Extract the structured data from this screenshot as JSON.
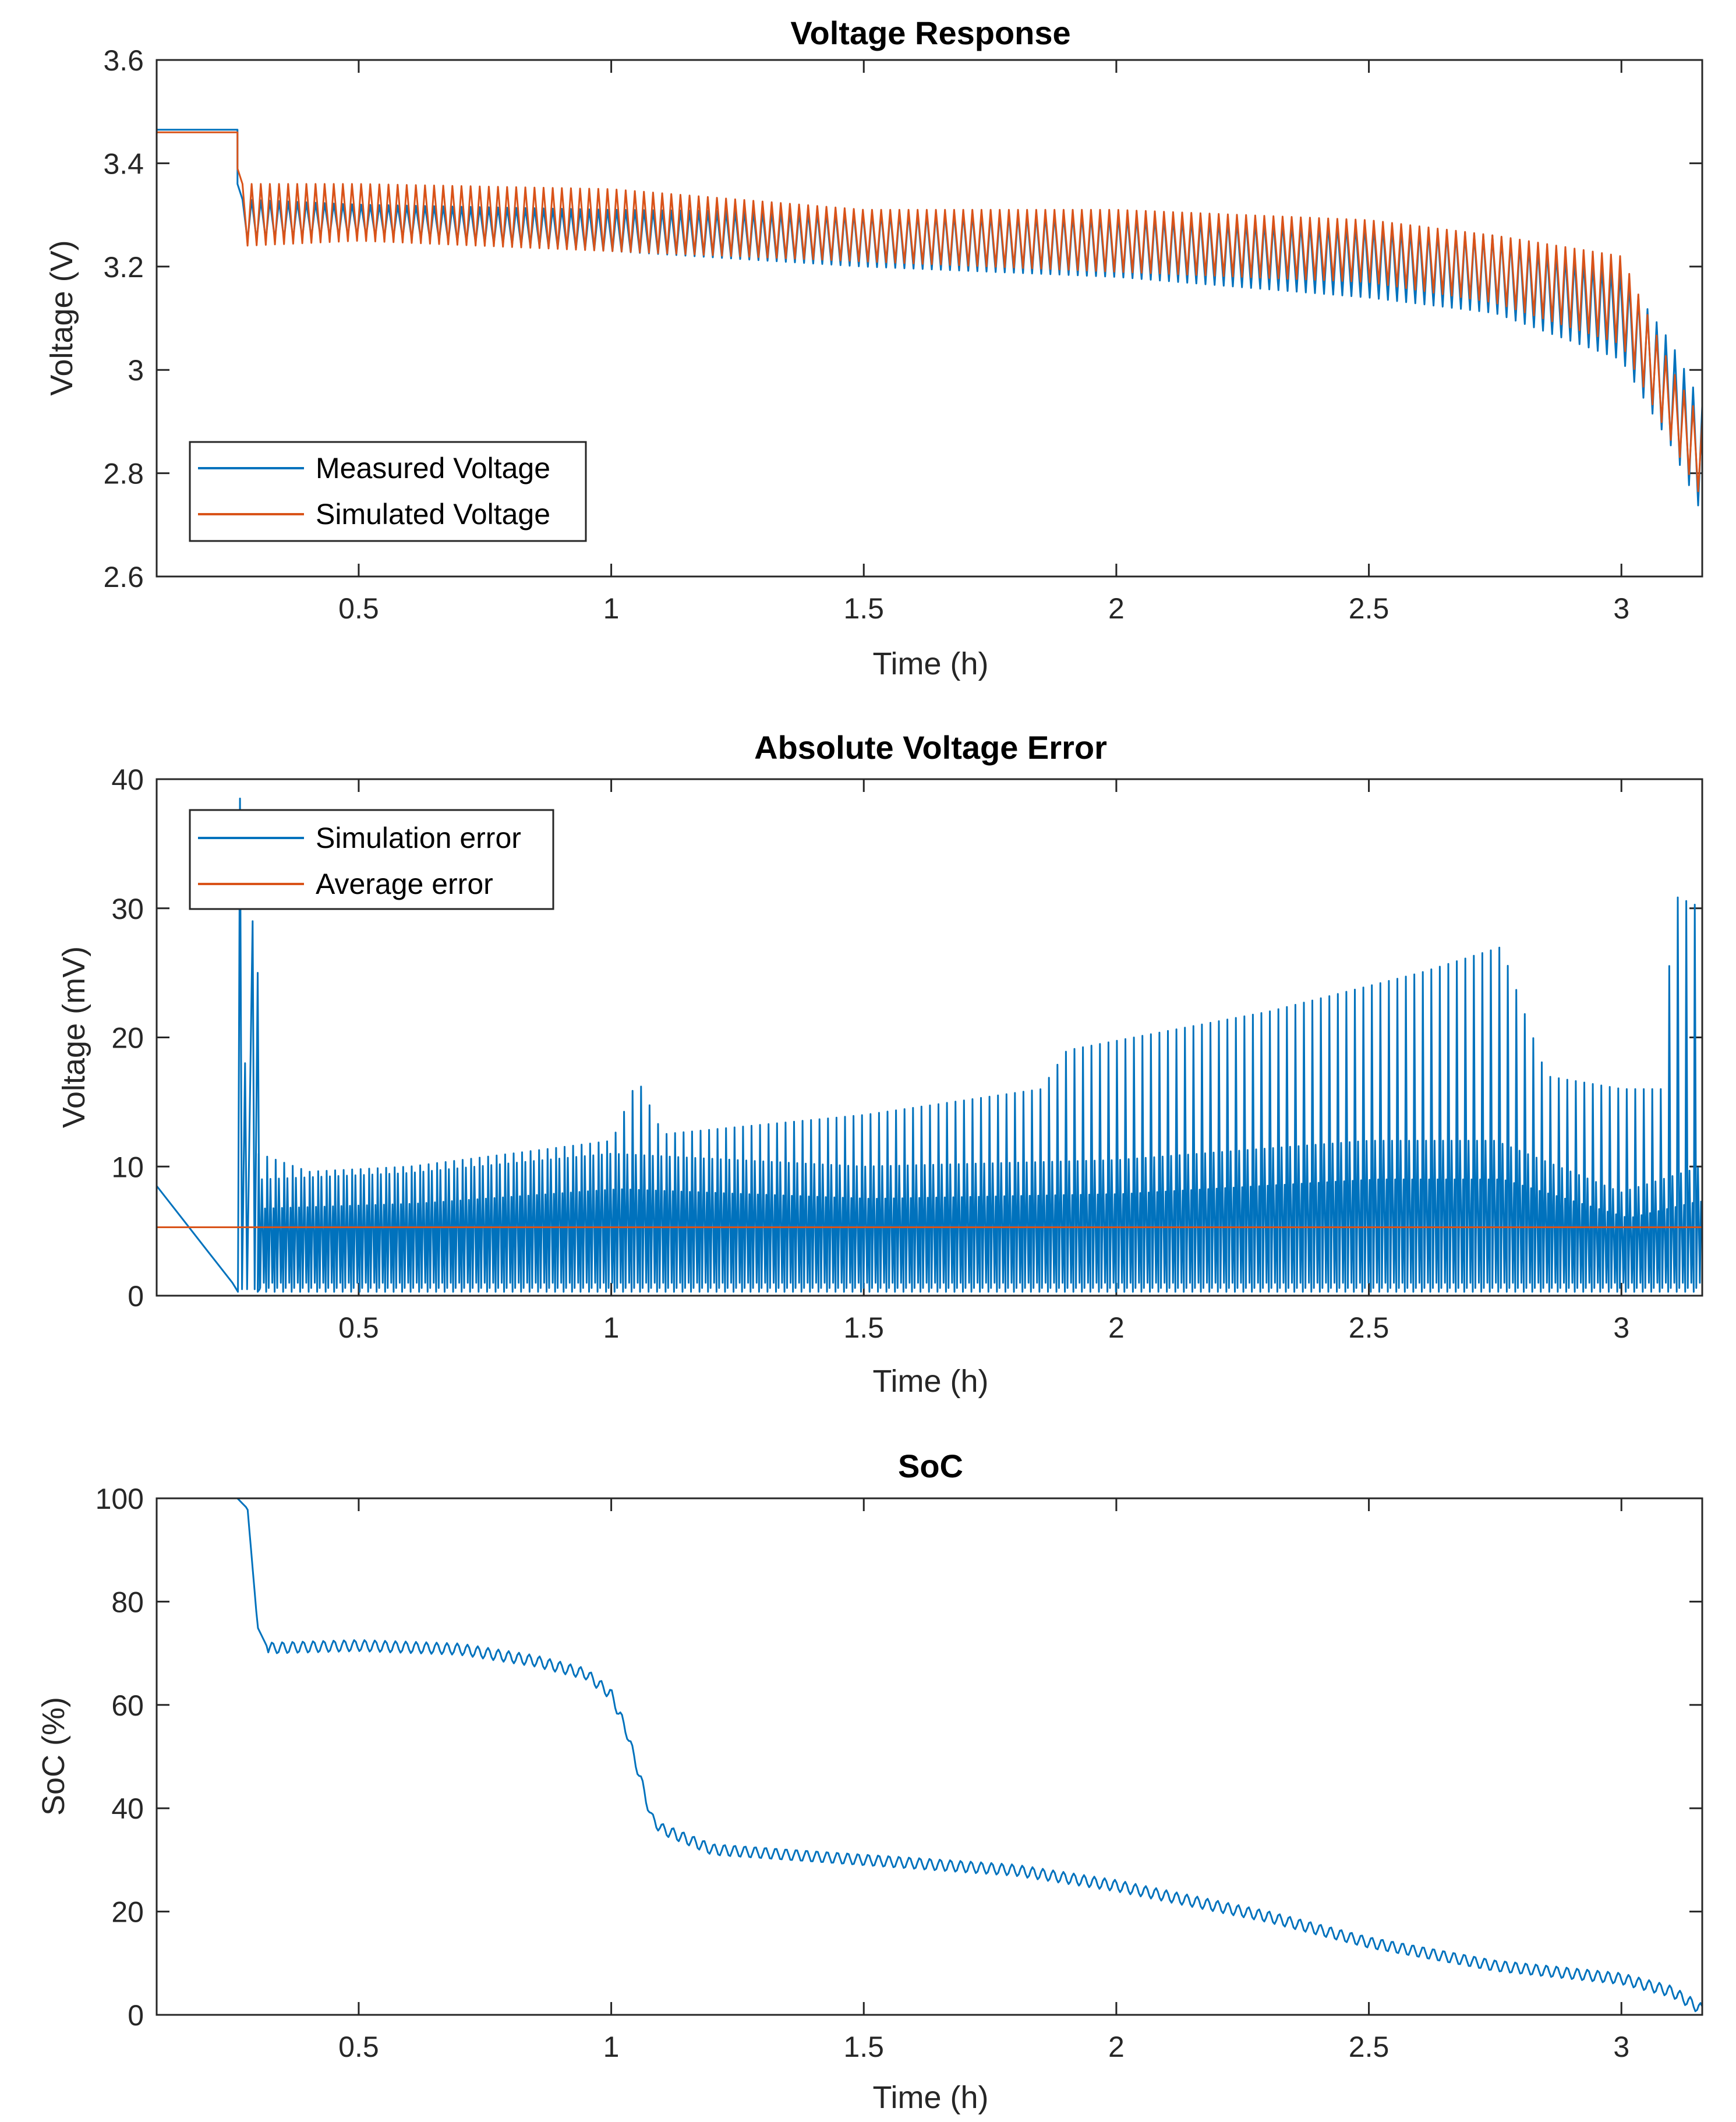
{
  "colors": {
    "measured": "#0072BD",
    "simulated": "#D95319",
    "axis": "#262626",
    "background": "#ffffff"
  },
  "chart_data": [
    {
      "type": "line",
      "title": "Voltage Response",
      "xlabel": "Time (h)",
      "ylabel": "Voltage (V)",
      "xlim": [
        0.1,
        3.16
      ],
      "ylim": [
        2.6,
        3.6
      ],
      "xticks": [
        0.5,
        1,
        1.5,
        2,
        2.5,
        3
      ],
      "xtick_labels": [
        "0.5",
        "1",
        "1.5",
        "2",
        "2.5",
        "3"
      ],
      "yticks": [
        2.6,
        2.8,
        3,
        3.2,
        3.4,
        3.6
      ],
      "ytick_labels": [
        "2.6",
        "2.8",
        "3",
        "3.2",
        "3.4",
        "3.6"
      ],
      "legend": "bottom-left",
      "series": [
        {
          "name": "Measured Voltage",
          "color": "#0072BD",
          "rest": {
            "x": [
              0.1,
              0.26
            ],
            "value": 3.465
          },
          "pulse_envelope": {
            "x": [
              0.27,
              0.5,
              1.0,
              1.5,
              2.0,
              2.5,
              2.75,
              3.0,
              3.1,
              3.16
            ],
            "upper": [
              3.33,
              3.32,
              3.31,
              3.305,
              3.3,
              3.28,
              3.26,
              3.19,
              3.05,
              2.93
            ],
            "lower": [
              3.25,
              3.26,
              3.23,
              3.2,
              3.18,
              3.14,
              3.11,
              3.02,
              2.85,
              2.72
            ]
          }
        },
        {
          "name": "Simulated Voltage",
          "color": "#D95319",
          "rest": {
            "x": [
              0.1,
              0.26
            ],
            "value": 3.46
          },
          "pulse_envelope": {
            "x": [
              0.27,
              0.5,
              1.0,
              1.5,
              2.0,
              2.5,
              2.75,
              3.0,
              3.1,
              3.16
            ],
            "upper": [
              3.36,
              3.36,
              3.35,
              3.31,
              3.31,
              3.29,
              3.26,
              3.22,
              3.0,
              2.9
            ],
            "lower": [
              3.24,
              3.25,
              3.23,
              3.21,
              3.19,
              3.17,
              3.13,
              3.05,
              2.86,
              2.75
            ]
          }
        }
      ]
    },
    {
      "type": "line",
      "title": "Absolute Voltage Error",
      "xlabel": "Time (h)",
      "ylabel": "Voltage (mV)",
      "xlim": [
        0.1,
        3.16
      ],
      "ylim": [
        0,
        40
      ],
      "xticks": [
        0.5,
        1,
        1.5,
        2,
        2.5,
        3
      ],
      "xtick_labels": [
        "0.5",
        "1",
        "1.5",
        "2",
        "2.5",
        "3"
      ],
      "yticks": [
        0,
        10,
        20,
        30,
        40
      ],
      "ytick_labels": [
        "0",
        "10",
        "20",
        "30",
        "40"
      ],
      "legend": "top-left",
      "series": [
        {
          "name": "Simulation error",
          "color": "#0072BD",
          "initial_decay": {
            "x": [
              0.1,
              0.15,
              0.2,
              0.25
            ],
            "y": [
              8.5,
              6.0,
              3.5,
              1.0
            ]
          },
          "spikes": {
            "x": [
              0.265,
              0.275,
              0.29,
              0.3
            ],
            "y": [
              38.5,
              18,
              29,
              25
            ]
          },
          "peak_envelope": {
            "x": [
              0.3,
              0.4,
              0.6,
              0.9,
              1.0,
              1.05,
              1.1,
              1.5,
              1.85,
              1.9,
              2.3,
              2.6,
              2.76,
              2.85,
              3.0,
              3.08,
              3.1,
              3.16
            ],
            "y": [
              11,
              9.6,
              10,
              11.5,
              12,
              16.8,
              12.5,
              14,
              16,
              19,
              22,
              25,
              27,
              17,
              16,
              16,
              31,
              30
            ]
          },
          "band_envelope": {
            "x": [
              0.3,
              0.6,
              1.0,
              1.5,
              2.0,
              2.5,
              2.75,
              3.0,
              3.16
            ],
            "y": [
              9,
              9.5,
              11,
              10,
              10.5,
              12,
              12,
              8,
              10
            ]
          }
        },
        {
          "name": "Average error",
          "color": "#D95319",
          "value": 5.3
        }
      ]
    },
    {
      "type": "line",
      "title": "SoC",
      "xlabel": "Time (h)",
      "ylabel": "SoC (%)",
      "xlim": [
        0.1,
        3.16
      ],
      "ylim": [
        0,
        100
      ],
      "xticks": [
        0.5,
        1,
        1.5,
        2,
        2.5,
        3
      ],
      "xtick_labels": [
        "0.5",
        "1",
        "1.5",
        "2",
        "2.5",
        "3"
      ],
      "yticks": [
        0,
        20,
        40,
        60,
        80,
        100
      ],
      "ytick_labels": [
        "0",
        "20",
        "40",
        "60",
        "80",
        "100"
      ],
      "legend": "none",
      "series": [
        {
          "name": "SoC",
          "color": "#0072BD",
          "x": [
            0.1,
            0.26,
            0.28,
            0.3,
            0.32,
            0.5,
            0.7,
            0.85,
            0.95,
            1.0,
            1.03,
            1.06,
            1.08,
            1.1,
            1.2,
            1.5,
            1.8,
            2.0,
            2.3,
            2.5,
            2.75,
            3.0,
            3.1,
            3.16
          ],
          "y": [
            100,
            100,
            98,
            75,
            71,
            71.5,
            70.8,
            68.5,
            66,
            62,
            55,
            45,
            38,
            36,
            32,
            30,
            28,
            25,
            19,
            14,
            9.5,
            7,
            4.5,
            1
          ]
        }
      ]
    }
  ]
}
